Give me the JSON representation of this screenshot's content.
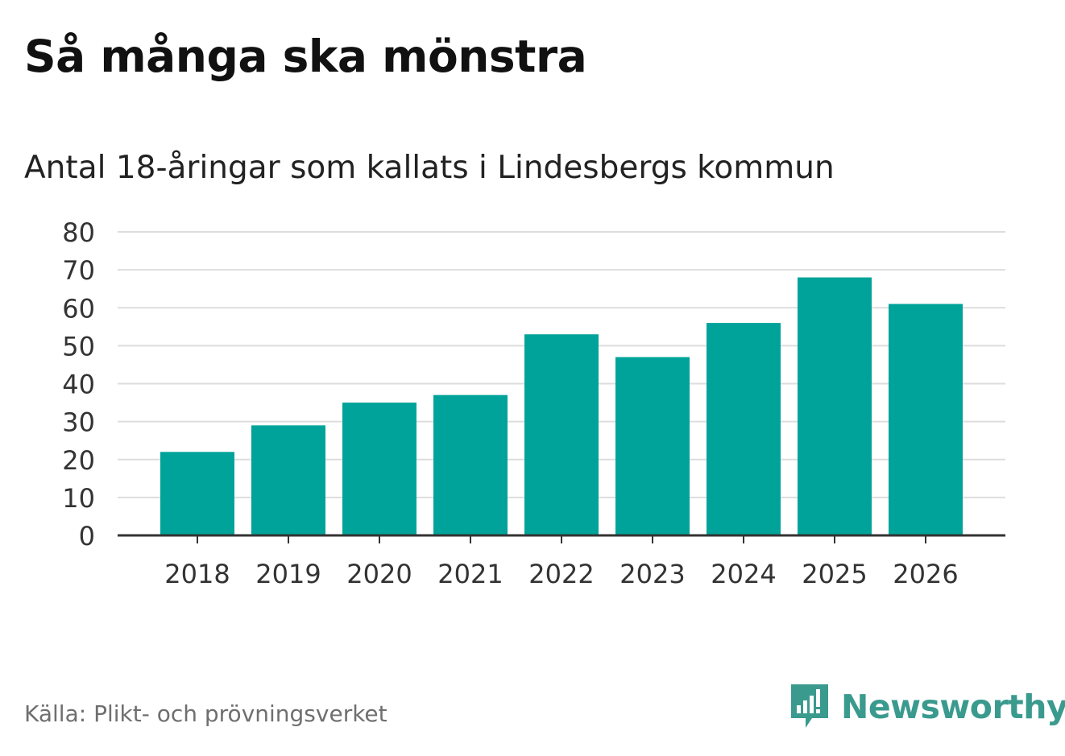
{
  "title": "Så många ska mönstra",
  "subtitle": "Antal 18-åringar som kallats i Lindesbergs kommun",
  "source": "Källa: Plikt- och prövningsverket",
  "brand": {
    "name": "Newsworthy",
    "icon": "newsworthy-logo-icon",
    "color": "#3a9a8e"
  },
  "colors": {
    "bar": "#00a39a",
    "grid": "#dddddd",
    "axis": "#333333",
    "tick_text": "#333333"
  },
  "chart_data": {
    "type": "bar",
    "categories": [
      "2018",
      "2019",
      "2020",
      "2021",
      "2022",
      "2023",
      "2024",
      "2025",
      "2026"
    ],
    "values": [
      22,
      29,
      35,
      37,
      53,
      47,
      56,
      68,
      61
    ],
    "title": "Så många ska mönstra",
    "subtitle": "Antal 18-åringar som kallats i Lindesbergs kommun",
    "xlabel": "",
    "ylabel": "",
    "ylim": [
      0,
      80
    ],
    "yticks": [
      0,
      10,
      20,
      30,
      40,
      50,
      60,
      70,
      80
    ],
    "grid": true
  }
}
